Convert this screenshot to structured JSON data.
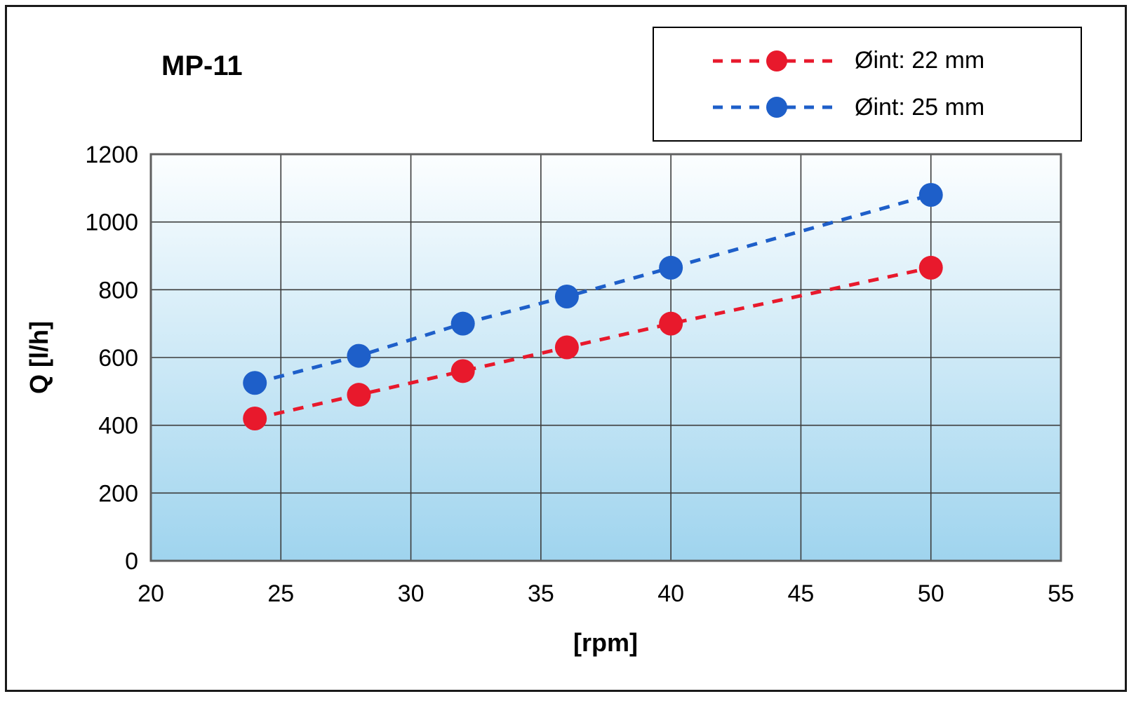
{
  "chart_data": {
    "type": "line",
    "title": "MP-11",
    "xlabel": "[rpm]",
    "ylabel": "Q [l/h]",
    "x": [
      24,
      28,
      32,
      36,
      40,
      50
    ],
    "series": [
      {
        "name": "Øint: 22 mm",
        "color": "#e8192c",
        "values": [
          420,
          490,
          560,
          630,
          700,
          865
        ]
      },
      {
        "name": "Øint: 25 mm",
        "color": "#1e5fc9",
        "values": [
          525,
          605,
          700,
          780,
          865,
          1080
        ]
      }
    ],
    "xlim": [
      20,
      55
    ],
    "ylim": [
      0,
      1200
    ],
    "xticks": [
      20,
      25,
      30,
      35,
      40,
      45,
      50,
      55
    ],
    "yticks": [
      0,
      200,
      400,
      600,
      800,
      1000,
      1200
    ],
    "grid": true,
    "line_style": "dashed",
    "marker": "circle",
    "legend_position": "top-right",
    "plot_bg_top": "#fcfeff",
    "plot_bg_bottom": "#9fd4ee",
    "gridline_color": "#3c3c3c",
    "plot_border_color": "#5f5f5f"
  }
}
